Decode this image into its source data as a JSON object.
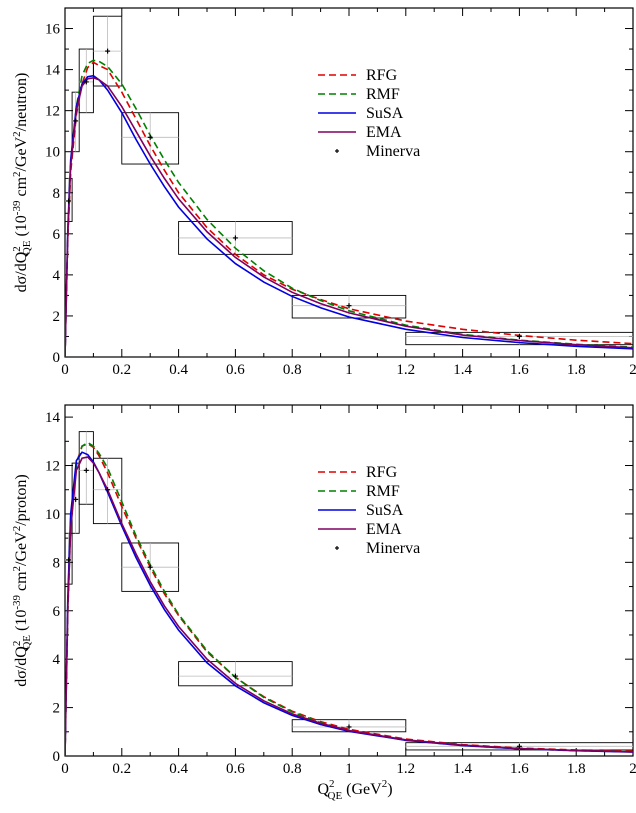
{
  "chart_data": [
    {
      "type": "line",
      "panel": "top",
      "xlim": [
        0,
        2
      ],
      "ylim": [
        0,
        17
      ],
      "xticks": [
        0,
        0.2,
        0.4,
        0.6,
        0.8,
        1,
        1.2,
        1.4,
        1.6,
        1.8,
        2
      ],
      "xtick_labels": [
        "0",
        "0.2",
        "0.4",
        "0.6",
        "0.8",
        "1",
        "1.2",
        "1.4",
        "1.6",
        "1.8",
        "2"
      ],
      "yticks": [
        0,
        2,
        4,
        6,
        8,
        10,
        12,
        14,
        16
      ],
      "ytick_labels": [
        "0",
        "2",
        "4",
        "6",
        "8",
        "10",
        "12",
        "14",
        "16"
      ],
      "ylabel_parts": [
        "dσ/dQ",
        "2",
        "QE",
        " (10",
        "-39",
        " cm",
        "2",
        "/GeV",
        "2",
        "/neutron)"
      ],
      "xlabel_parts": [],
      "grid": false,
      "legend_position": "top-right",
      "series": [
        {
          "name": "RFG",
          "color": "#e00000",
          "dash": "dashed",
          "x": [
            0,
            0.005,
            0.01,
            0.02,
            0.04,
            0.06,
            0.08,
            0.1,
            0.12,
            0.15,
            0.2,
            0.25,
            0.3,
            0.35,
            0.4,
            0.5,
            0.6,
            0.7,
            0.8,
            0.9,
            1.0,
            1.2,
            1.4,
            1.6,
            1.8,
            2.0
          ],
          "y": [
            0,
            3.0,
            5.8,
            9.0,
            11.8,
            13.3,
            14.1,
            14.35,
            14.2,
            14.0,
            12.9,
            11.6,
            10.3,
            9.1,
            8.0,
            6.3,
            5.0,
            4.0,
            3.3,
            2.8,
            2.35,
            1.75,
            1.35,
            1.05,
            0.82,
            0.65
          ]
        },
        {
          "name": "RMF",
          "color": "#008000",
          "dash": "dashed",
          "x": [
            0,
            0.005,
            0.01,
            0.02,
            0.04,
            0.06,
            0.08,
            0.1,
            0.12,
            0.15,
            0.2,
            0.25,
            0.3,
            0.35,
            0.4,
            0.5,
            0.6,
            0.7,
            0.8,
            0.9,
            1.0,
            1.2,
            1.4,
            1.6,
            1.8,
            2.0
          ],
          "y": [
            0,
            3.2,
            6.0,
            9.3,
            12.2,
            13.7,
            14.3,
            14.45,
            14.4,
            14.15,
            13.3,
            12.1,
            10.8,
            9.6,
            8.5,
            6.7,
            5.3,
            4.2,
            3.35,
            2.75,
            2.25,
            1.55,
            1.1,
            0.82,
            0.62,
            0.48
          ]
        },
        {
          "name": "SuSA",
          "color": "#0000e0",
          "dash": "solid",
          "x": [
            0,
            0.005,
            0.01,
            0.02,
            0.04,
            0.06,
            0.08,
            0.1,
            0.12,
            0.15,
            0.2,
            0.25,
            0.3,
            0.35,
            0.4,
            0.5,
            0.6,
            0.7,
            0.8,
            0.9,
            1.0,
            1.2,
            1.4,
            1.6,
            1.8,
            2.0
          ],
          "y": [
            0,
            3.3,
            6.3,
            9.6,
            12.2,
            13.3,
            13.65,
            13.7,
            13.5,
            13.0,
            11.9,
            10.6,
            9.4,
            8.3,
            7.3,
            5.75,
            4.55,
            3.65,
            2.95,
            2.4,
            1.95,
            1.35,
            0.95,
            0.7,
            0.52,
            0.4
          ]
        },
        {
          "name": "EMA",
          "color": "#800060",
          "dash": "solid",
          "x": [
            0,
            0.005,
            0.01,
            0.02,
            0.04,
            0.06,
            0.08,
            0.1,
            0.12,
            0.15,
            0.2,
            0.25,
            0.3,
            0.35,
            0.4,
            0.5,
            0.6,
            0.7,
            0.8,
            0.9,
            1.0,
            1.2,
            1.4,
            1.6,
            1.8,
            2.0
          ],
          "y": [
            0,
            3.1,
            6.0,
            9.3,
            12.0,
            13.2,
            13.55,
            13.6,
            13.5,
            13.2,
            12.2,
            11.0,
            9.8,
            8.7,
            7.7,
            6.1,
            4.85,
            3.9,
            3.15,
            2.6,
            2.15,
            1.5,
            1.07,
            0.8,
            0.6,
            0.45
          ]
        }
      ],
      "data": {
        "name": "Minerva",
        "points": [
          {
            "x": 0.0125,
            "y": 7.6,
            "x_lo": 0.0,
            "x_hi": 0.025,
            "y_lo": 6.6,
            "y_hi": 8.7
          },
          {
            "x": 0.0375,
            "y": 11.5,
            "x_lo": 0.025,
            "x_hi": 0.05,
            "y_lo": 10.0,
            "y_hi": 12.9
          },
          {
            "x": 0.075,
            "y": 13.4,
            "x_lo": 0.05,
            "x_hi": 0.1,
            "y_lo": 11.9,
            "y_hi": 15.0
          },
          {
            "x": 0.15,
            "y": 14.9,
            "x_lo": 0.1,
            "x_hi": 0.2,
            "y_lo": 13.2,
            "y_hi": 16.6
          },
          {
            "x": 0.3,
            "y": 10.7,
            "x_lo": 0.2,
            "x_hi": 0.4,
            "y_lo": 9.4,
            "y_hi": 11.9
          },
          {
            "x": 0.6,
            "y": 5.8,
            "x_lo": 0.4,
            "x_hi": 0.8,
            "y_lo": 5.0,
            "y_hi": 6.6
          },
          {
            "x": 1.0,
            "y": 2.5,
            "x_lo": 0.8,
            "x_hi": 1.2,
            "y_lo": 1.9,
            "y_hi": 3.0
          },
          {
            "x": 1.6,
            "y": 1.0,
            "x_lo": 1.2,
            "x_hi": 2.0,
            "y_lo": 0.6,
            "y_hi": 1.2
          }
        ]
      }
    },
    {
      "type": "line",
      "panel": "bottom",
      "xlim": [
        0,
        2
      ],
      "ylim": [
        0,
        14.5
      ],
      "xticks": [
        0,
        0.2,
        0.4,
        0.6,
        0.8,
        1,
        1.2,
        1.4,
        1.6,
        1.8,
        2
      ],
      "xtick_labels": [
        "0",
        "0.2",
        "0.4",
        "0.6",
        "0.8",
        "1",
        "1.2",
        "1.4",
        "1.6",
        "1.8",
        "2"
      ],
      "yticks": [
        0,
        2,
        4,
        6,
        8,
        10,
        12,
        14
      ],
      "ytick_labels": [
        "0",
        "2",
        "4",
        "6",
        "8",
        "10",
        "12",
        "14"
      ],
      "ylabel_parts": [
        "dσ/dQ",
        "2",
        "QE",
        " (10",
        "-39",
        " cm",
        "2",
        "/GeV",
        "2",
        "/proton)"
      ],
      "xlabel_parts": [
        "Q",
        "2",
        "QE",
        " (GeV",
        "2",
        ")"
      ],
      "grid": false,
      "legend_position": "top-right",
      "series": [
        {
          "name": "RFG",
          "color": "#e00000",
          "dash": "dashed",
          "x": [
            0,
            0.005,
            0.01,
            0.02,
            0.04,
            0.06,
            0.08,
            0.1,
            0.12,
            0.15,
            0.2,
            0.25,
            0.3,
            0.35,
            0.4,
            0.5,
            0.6,
            0.7,
            0.8,
            0.9,
            1.0,
            1.2,
            1.4,
            1.6,
            1.8,
            2.0
          ],
          "y": [
            0,
            3.2,
            6.3,
            9.8,
            12.1,
            12.8,
            12.9,
            12.75,
            12.4,
            11.7,
            10.3,
            9.0,
            7.8,
            6.7,
            5.8,
            4.3,
            3.25,
            2.45,
            1.85,
            1.42,
            1.1,
            0.7,
            0.47,
            0.33,
            0.25,
            0.2
          ]
        },
        {
          "name": "RMF",
          "color": "#008000",
          "dash": "dashed",
          "x": [
            0,
            0.005,
            0.01,
            0.02,
            0.04,
            0.06,
            0.08,
            0.1,
            0.12,
            0.15,
            0.2,
            0.25,
            0.3,
            0.35,
            0.4,
            0.5,
            0.6,
            0.7,
            0.8,
            0.9,
            1.0,
            1.2,
            1.4,
            1.6,
            1.8,
            2.0
          ],
          "y": [
            0,
            3.0,
            6.0,
            9.5,
            12.0,
            12.8,
            12.95,
            12.8,
            12.5,
            11.9,
            10.5,
            9.1,
            7.9,
            6.8,
            5.85,
            4.35,
            3.25,
            2.42,
            1.82,
            1.38,
            1.05,
            0.65,
            0.43,
            0.3,
            0.22,
            0.17
          ]
        },
        {
          "name": "SuSA",
          "color": "#0000e0",
          "dash": "solid",
          "x": [
            0,
            0.005,
            0.01,
            0.02,
            0.04,
            0.06,
            0.08,
            0.1,
            0.12,
            0.15,
            0.2,
            0.25,
            0.3,
            0.35,
            0.4,
            0.5,
            0.6,
            0.7,
            0.8,
            0.9,
            1.0,
            1.2,
            1.4,
            1.6,
            1.8,
            2.0
          ],
          "y": [
            0,
            3.4,
            6.6,
            10.0,
            12.2,
            12.55,
            12.45,
            12.15,
            11.7,
            10.9,
            9.5,
            8.2,
            7.05,
            6.05,
            5.2,
            3.85,
            2.9,
            2.2,
            1.68,
            1.3,
            1.02,
            0.65,
            0.43,
            0.3,
            0.22,
            0.16
          ]
        },
        {
          "name": "EMA",
          "color": "#800060",
          "dash": "solid",
          "x": [
            0,
            0.005,
            0.01,
            0.02,
            0.04,
            0.06,
            0.08,
            0.1,
            0.12,
            0.15,
            0.2,
            0.25,
            0.3,
            0.35,
            0.4,
            0.5,
            0.6,
            0.7,
            0.8,
            0.9,
            1.0,
            1.2,
            1.4,
            1.6,
            1.8,
            2.0
          ],
          "y": [
            0,
            3.1,
            6.1,
            9.4,
            11.8,
            12.3,
            12.35,
            12.1,
            11.7,
            11.0,
            9.6,
            8.35,
            7.2,
            6.2,
            5.35,
            4.0,
            3.0,
            2.28,
            1.74,
            1.35,
            1.05,
            0.67,
            0.45,
            0.31,
            0.23,
            0.17
          ]
        }
      ],
      "data": {
        "name": "Minerva",
        "points": [
          {
            "x": 0.0125,
            "y": 8.1,
            "x_lo": 0.0,
            "x_hi": 0.025,
            "y_lo": 7.1,
            "y_hi": 9.2
          },
          {
            "x": 0.0375,
            "y": 10.6,
            "x_lo": 0.025,
            "x_hi": 0.05,
            "y_lo": 9.2,
            "y_hi": 12.1
          },
          {
            "x": 0.075,
            "y": 11.8,
            "x_lo": 0.05,
            "x_hi": 0.1,
            "y_lo": 10.4,
            "y_hi": 13.4
          },
          {
            "x": 0.15,
            "y": 11.0,
            "x_lo": 0.1,
            "x_hi": 0.2,
            "y_lo": 9.6,
            "y_hi": 12.3
          },
          {
            "x": 0.3,
            "y": 7.8,
            "x_lo": 0.2,
            "x_hi": 0.4,
            "y_lo": 6.8,
            "y_hi": 8.8
          },
          {
            "x": 0.6,
            "y": 3.3,
            "x_lo": 0.4,
            "x_hi": 0.8,
            "y_lo": 2.9,
            "y_hi": 3.9
          },
          {
            "x": 1.0,
            "y": 1.2,
            "x_lo": 0.8,
            "x_hi": 1.2,
            "y_lo": 1.0,
            "y_hi": 1.5
          },
          {
            "x": 1.6,
            "y": 0.4,
            "x_lo": 1.2,
            "x_hi": 2.0,
            "y_lo": 0.25,
            "y_hi": 0.55
          }
        ]
      }
    }
  ]
}
